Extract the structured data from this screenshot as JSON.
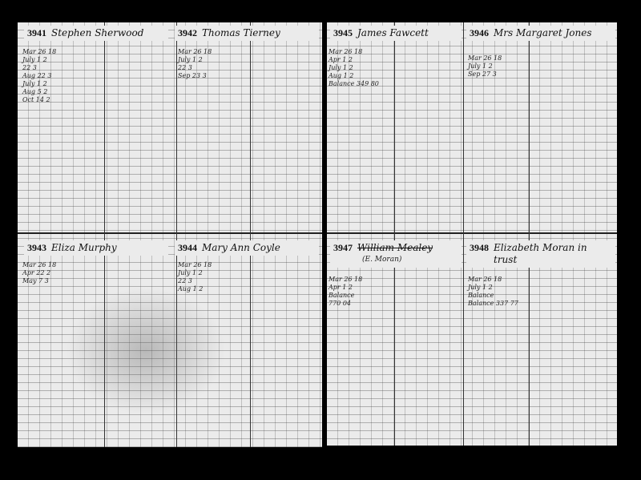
{
  "ledger": {
    "left_page": {
      "accounts": [
        {
          "number": "3941",
          "name": "Stephen Sherwood",
          "entries": [
            "Mar 26 18",
            "July 1 2",
            "22 3",
            "Aug 22 3",
            "July 1 2",
            "Aug 5 2",
            "Oct 14 2"
          ]
        },
        {
          "number": "3942",
          "name": "Thomas Tierney",
          "entries": [
            "Mar 26 18",
            "July 1 2",
            "22 3",
            "Sep 23 3"
          ]
        },
        {
          "number": "3943",
          "name": "Eliza Murphy",
          "entries": [
            "Mar 26 18",
            "Apr 22 2",
            "May 7 3"
          ]
        },
        {
          "number": "3944",
          "name": "Mary Ann Coyle",
          "entries": [
            "Mar 26 18",
            "July 1 2",
            "22 3",
            "Aug 1 2"
          ]
        }
      ]
    },
    "right_page": {
      "accounts": [
        {
          "number": "3945",
          "name": "James Fawcett",
          "entries": [
            "Mar 26 18",
            "Apr 1 2",
            "July 1 2",
            "Aug 1 2",
            "Balance 349 80"
          ]
        },
        {
          "number": "3946",
          "name": "Mrs Margaret Jones",
          "entries": [
            "Mar 26 18",
            "July 1 2",
            "Sep 27 3"
          ]
        },
        {
          "number": "3947",
          "name": "William Mealey",
          "note": "(E. Moran)",
          "entries": [
            "Mar 26 18",
            "Apr 1 2",
            "Balance",
            "770 04"
          ]
        },
        {
          "number": "3948",
          "name": "Elizabeth Moran in trust",
          "entries": [
            "Mar 26 18",
            "July 1 2",
            "Balance",
            "Balance 337 77"
          ]
        }
      ]
    }
  }
}
